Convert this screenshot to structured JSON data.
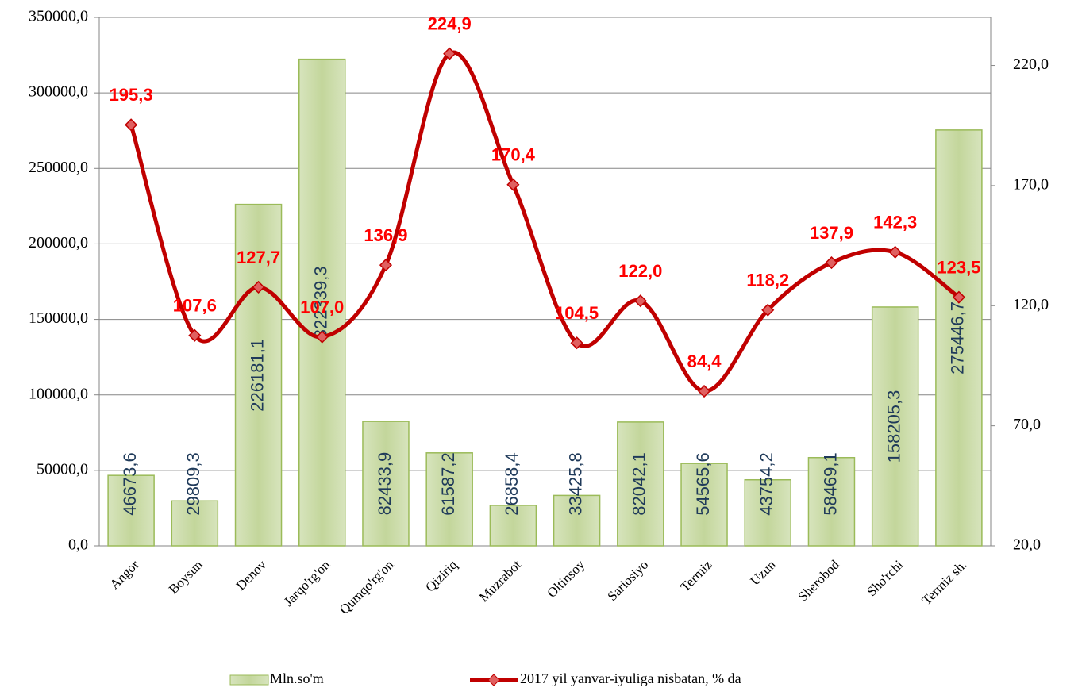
{
  "chart_data": {
    "type": "bar_line",
    "categories": [
      "Angor",
      "Boysun",
      "Denov",
      "Jarqo'rg'on",
      "Qumqo'rg'on",
      "Qiziriq",
      "Muzrabot",
      "Oltinsoy",
      "Sariosiyo",
      "Termiz",
      "Uzun",
      "Sherobod",
      "Sho'rchi",
      "Termiz sh."
    ],
    "series": [
      {
        "name": "Mln.so'm",
        "type": "bar",
        "color": "#c3d69b",
        "values": [
          46673.6,
          29809.3,
          226181.1,
          322339.3,
          82433.9,
          61587.2,
          26858.4,
          33425.8,
          82042.1,
          54565.6,
          43754.2,
          58469.1,
          158205.3,
          275446.7
        ],
        "value_labels": [
          "46673,6",
          "29809,3",
          "226181,1",
          "322339,3",
          "82433,9",
          "61587,2",
          "26858,4",
          "33425,8",
          "82042,1",
          "54565,6",
          "43754,2",
          "58469,1",
          "158205,3",
          "275446,7"
        ]
      },
      {
        "name": "2017 yil yanvar-iyuliga nisbatan, % da",
        "type": "line",
        "axis": "y2",
        "color": "#c00000",
        "values": [
          195.3,
          107.6,
          127.7,
          107.0,
          136.9,
          224.9,
          170.4,
          104.5,
          122.0,
          84.4,
          118.2,
          137.9,
          142.3,
          123.5
        ],
        "value_labels": [
          "195,3",
          "107,6",
          "127,7",
          "107,0",
          "136,9",
          "224,9",
          "170,4",
          "104,5",
          "122,0",
          "84,4",
          "118,2",
          "137,9",
          "142,3",
          "123,5"
        ]
      }
    ],
    "ylim": [
      0,
      350000
    ],
    "yticks": [
      {
        "value": 0,
        "label": "0,0"
      },
      {
        "value": 50000,
        "label": "50000,0"
      },
      {
        "value": 100000,
        "label": "100000,0"
      },
      {
        "value": 150000,
        "label": "150000,0"
      },
      {
        "value": 200000,
        "label": "200000,0"
      },
      {
        "value": 250000,
        "label": "250000,0"
      },
      {
        "value": 300000,
        "label": "300000,0"
      },
      {
        "value": 350000,
        "label": "350000,0"
      }
    ],
    "y2lim": [
      20,
      240
    ],
    "y2ticks": [
      {
        "value": 20,
        "label": "20,0"
      },
      {
        "value": 70,
        "label": "70,0"
      },
      {
        "value": 120,
        "label": "120,0"
      },
      {
        "value": 170,
        "label": "170,0"
      },
      {
        "value": 220,
        "label": "220,0"
      }
    ],
    "grid": true,
    "legend": "bottom"
  }
}
